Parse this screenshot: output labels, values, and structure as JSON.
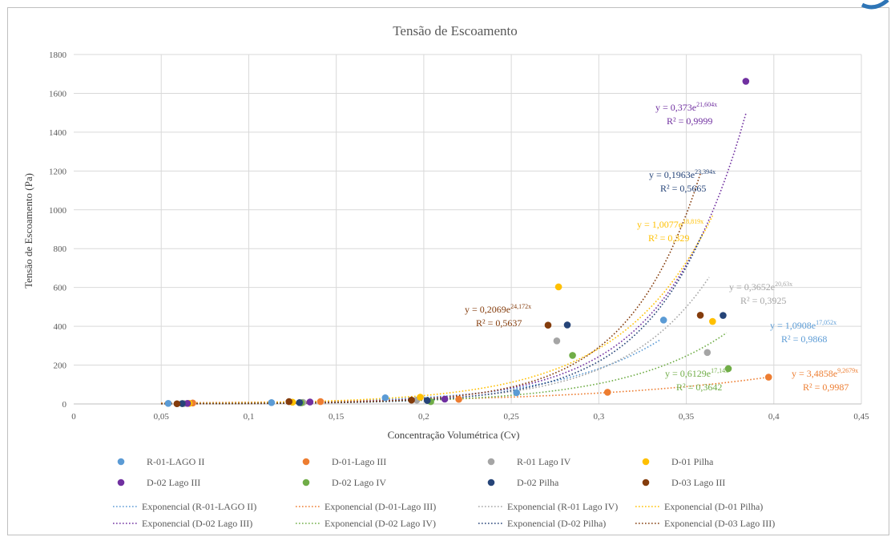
{
  "chart_data": {
    "type": "scatter",
    "title": "Tensão de Escoamento",
    "xlabel": "Concentração Volumétrica (Cv)",
    "ylabel": "Tensão de Escoamento (Pa)",
    "xlim": [
      0,
      0.45
    ],
    "ylim": [
      0,
      1800
    ],
    "x_ticks": [
      "0",
      "0,05",
      "0,1",
      "0,15",
      "0,2",
      "0,25",
      "0,3",
      "0,35",
      "0,4",
      "0,45"
    ],
    "y_ticks": [
      "0",
      "200",
      "400",
      "600",
      "800",
      "1000",
      "1200",
      "1400",
      "1600",
      "1800"
    ],
    "grid": "vertical and horizontal major gridlines",
    "legend_position": "bottom",
    "series": [
      {
        "name": "R-01-LAGO II",
        "color": "#5b9bd5",
        "trend_name": "Exponencial (R-01-LAGO II)",
        "trend_a": 1.0908,
        "trend_b": 17.052,
        "trend_range": [
          0.05,
          0.335
        ],
        "equation_lead": "y = 1,0908e",
        "equation_exp": "17,052x",
        "r2": "R² = 0,9868",
        "points": [
          {
            "x": 0.054,
            "y": 3
          },
          {
            "x": 0.113,
            "y": 7
          },
          {
            "x": 0.178,
            "y": 32
          },
          {
            "x": 0.253,
            "y": 58
          },
          {
            "x": 0.337,
            "y": 432
          }
        ]
      },
      {
        "name": "D-01-Lago III",
        "color": "#ed7d31",
        "trend_name": "Exponencial (D-01-Lago III)",
        "trend_a": 3.4858,
        "trend_b": 9.2679,
        "trend_range": [
          0.05,
          0.395
        ],
        "equation_lead": "y = 3,4858e",
        "equation_exp": "9,2679x",
        "r2": "R² = 0,9987",
        "points": [
          {
            "x": 0.068,
            "y": 5
          },
          {
            "x": 0.141,
            "y": 12
          },
          {
            "x": 0.22,
            "y": 24
          },
          {
            "x": 0.305,
            "y": 60
          },
          {
            "x": 0.397,
            "y": 138
          }
        ]
      },
      {
        "name": "R-01 Lago IV",
        "color": "#a5a5a5",
        "trend_name": "Exponencial (R-01 Lago IV)",
        "trend_a": 0.3652,
        "trend_b": 20.63,
        "trend_range": [
          0.05,
          0.363
        ],
        "equation_lead": "y = 0,3652e",
        "equation_exp": "20,63x",
        "r2": "R² = 0,3925",
        "points": [
          {
            "x": 0.063,
            "y": 2
          },
          {
            "x": 0.131,
            "y": 8
          },
          {
            "x": 0.196,
            "y": 20
          },
          {
            "x": 0.276,
            "y": 325
          },
          {
            "x": 0.362,
            "y": 265
          }
        ]
      },
      {
        "name": "D-01 Pilha",
        "color": "#ffc000",
        "trend_name": "Exponencial (D-01 Pilha)",
        "trend_a": 1.0077,
        "trend_b": 18.819,
        "trend_range": [
          0.05,
          0.365
        ],
        "equation_lead": "y = 1,0077e",
        "equation_exp": "18,819x",
        "r2": "R² = 0,329",
        "points": [
          {
            "x": 0.066,
            "y": 3
          },
          {
            "x": 0.125,
            "y": 9
          },
          {
            "x": 0.198,
            "y": 35
          },
          {
            "x": 0.277,
            "y": 603
          },
          {
            "x": 0.365,
            "y": 425
          }
        ]
      },
      {
        "name": "D-02 Lago III",
        "color": "#7030a0",
        "trend_name": "Exponencial (D-02 Lago III)",
        "trend_a": 0.373,
        "trend_b": 21.604,
        "trend_range": [
          0.05,
          0.384
        ],
        "equation_lead": "y = 0,373e",
        "equation_exp": "21,604x",
        "r2": "R² = 0,9999",
        "points": [
          {
            "x": 0.065,
            "y": 3
          },
          {
            "x": 0.135,
            "y": 10
          },
          {
            "x": 0.212,
            "y": 25
          },
          {
            "x": 0.384,
            "y": 1662
          }
        ]
      },
      {
        "name": "D-02 Lago IV",
        "color": "#70ad47",
        "trend_name": "Exponencial (D-02 Lago IV)",
        "trend_a": 0.6129,
        "trend_b": 17.14,
        "trend_range": [
          0.05,
          0.373
        ],
        "equation_lead": "y = 0,6129e",
        "equation_exp": "17,14x",
        "r2": "R² = 0,3642",
        "points": [
          {
            "x": 0.062,
            "y": 2
          },
          {
            "x": 0.13,
            "y": 6
          },
          {
            "x": 0.204,
            "y": 12
          },
          {
            "x": 0.285,
            "y": 250
          },
          {
            "x": 0.374,
            "y": 182
          }
        ]
      },
      {
        "name": "D-02 Pilha",
        "color": "#264478",
        "trend_name": "Exponencial (D-02 Pilha)",
        "trend_a": 0.1963,
        "trend_b": 23.394,
        "trend_range": [
          0.05,
          0.359
        ],
        "equation_lead": "y = 0,1963e",
        "equation_exp": "23,394x",
        "r2": "R² = 0,5665",
        "points": [
          {
            "x": 0.062,
            "y": 2
          },
          {
            "x": 0.129,
            "y": 7
          },
          {
            "x": 0.202,
            "y": 18
          },
          {
            "x": 0.282,
            "y": 407
          },
          {
            "x": 0.371,
            "y": 456
          }
        ]
      },
      {
        "name": "D-03 Lago III",
        "color": "#843c0c",
        "trend_name": "Exponencial (D-03 Lago III)",
        "trend_a": 0.2069,
        "trend_b": 24.172,
        "trend_range": [
          0.05,
          0.358
        ],
        "equation_lead": "y = 0,2069e",
        "equation_exp": "24,172x",
        "r2": "R² = 0,5637",
        "points": [
          {
            "x": 0.059,
            "y": 1
          },
          {
            "x": 0.123,
            "y": 12
          },
          {
            "x": 0.193,
            "y": 20
          },
          {
            "x": 0.271,
            "y": 406
          },
          {
            "x": 0.358,
            "y": 457
          }
        ]
      }
    ]
  }
}
